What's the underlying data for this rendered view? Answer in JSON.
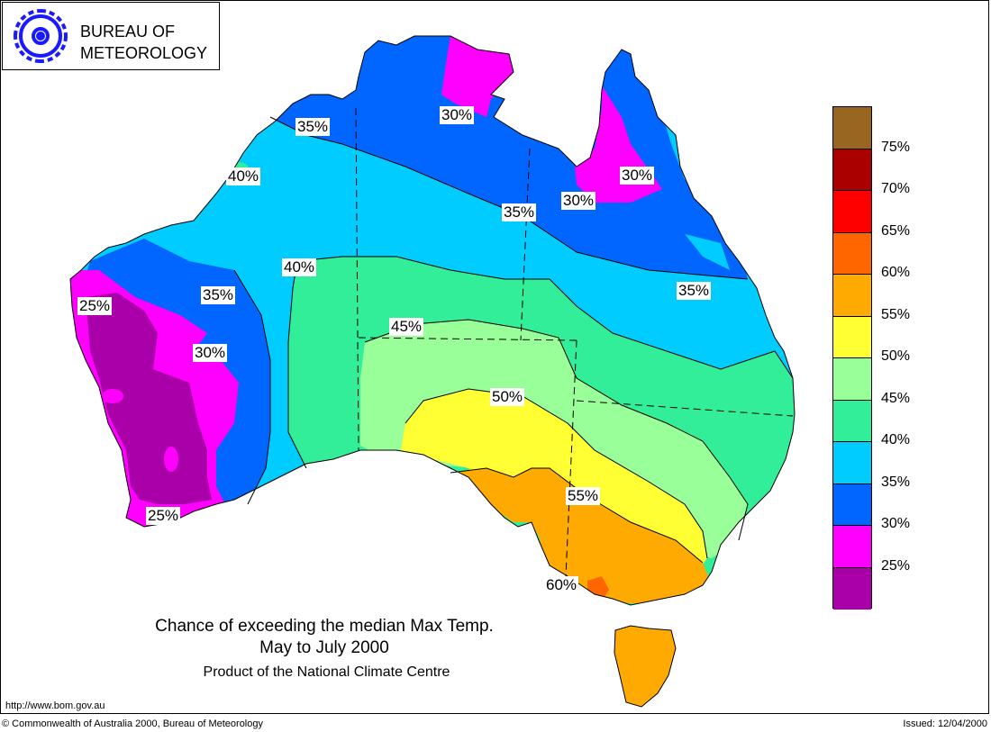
{
  "logo": {
    "line1": "BUREAU OF",
    "line2": "METEOROLOGY"
  },
  "title": {
    "line1": "Chance of exceeding the median Max Temp.",
    "line2": "May to July 2000"
  },
  "subtitle": "Product of the National Climate Centre",
  "url": "http://www.bom.gov.au",
  "footer": {
    "copyright": "© Commonwealth of Australia 2000, Bureau of Meteorology",
    "issued": "Issued: 12/04/2000"
  },
  "colors": {
    "c20": "#aa00aa",
    "c25": "#ff00ff",
    "c30": "#0066ff",
    "c35": "#00ccff",
    "c40": "#33ee99",
    "c45": "#99ff99",
    "c50": "#ffff33",
    "c55": "#ffaa00",
    "c60": "#ff6600",
    "c65": "#ff0000",
    "c70": "#aa0000",
    "c75": "#996622"
  },
  "legend": {
    "swatches": [
      "#996622",
      "#aa0000",
      "#ff0000",
      "#ff6600",
      "#ffaa00",
      "#ffff33",
      "#99ff99",
      "#33ee99",
      "#00ccff",
      "#0066ff",
      "#ff00ff",
      "#aa00aa"
    ],
    "labels": [
      "75%",
      "70%",
      "65%",
      "60%",
      "55%",
      "50%",
      "45%",
      "40%",
      "35%",
      "30%",
      "25%"
    ]
  },
  "contour_labels": [
    "35%",
    "30%",
    "40%",
    "30%",
    "35%",
    "30%",
    "40%",
    "35%",
    "35%",
    "25%",
    "30%",
    "45%",
    "50%",
    "55%",
    "25%",
    "60%"
  ]
}
